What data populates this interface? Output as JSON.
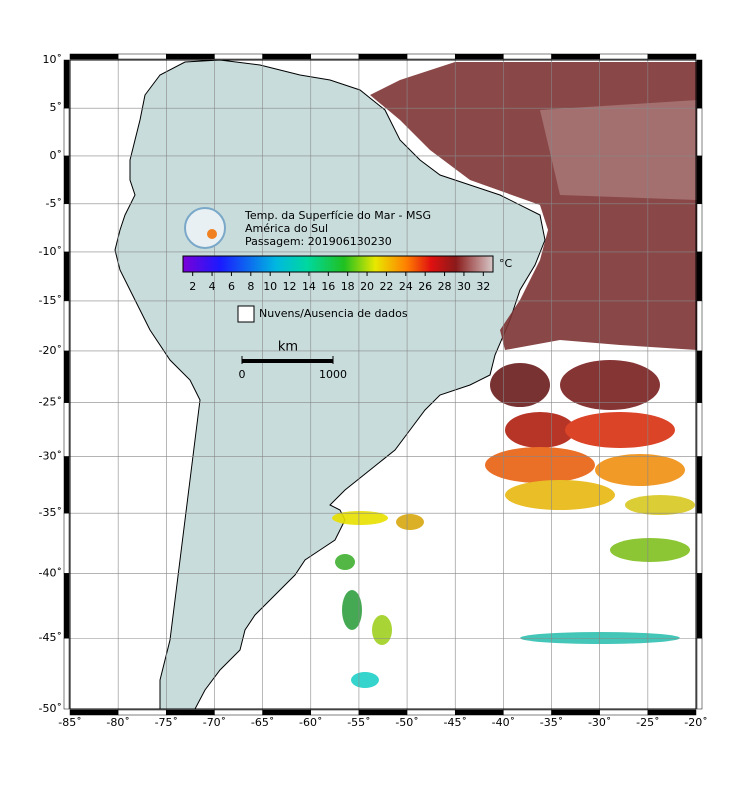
{
  "map": {
    "title_lines": [
      "Temp. da Superfície do Mar - MSG",
      "América do Sul",
      "Passagem: 201906130230"
    ],
    "xlim": [
      -85,
      -20
    ],
    "ylim": [
      -50,
      10
    ],
    "xticks": [
      {
        "value": -85,
        "label": "-85˚"
      },
      {
        "value": -80,
        "label": "-80˚"
      },
      {
        "value": -75,
        "label": "-75˚"
      },
      {
        "value": -70,
        "label": "-70˚"
      },
      {
        "value": -65,
        "label": "-65˚"
      },
      {
        "value": -60,
        "label": "-60˚"
      },
      {
        "value": -55,
        "label": "-55˚"
      },
      {
        "value": -50,
        "label": "-50˚"
      },
      {
        "value": -45,
        "label": "-45˚"
      },
      {
        "value": -40,
        "label": "-40˚"
      },
      {
        "value": -35,
        "label": "-35˚"
      },
      {
        "value": -30,
        "label": "-30˚"
      },
      {
        "value": -25,
        "label": "-25˚"
      },
      {
        "value": -20,
        "label": "-20˚"
      }
    ],
    "yticks": [
      {
        "value": 10,
        "label": "10˚"
      },
      {
        "value": 5,
        "label": "5˚"
      },
      {
        "value": 0,
        "label": "0˚"
      },
      {
        "value": -5,
        "label": "-5˚"
      },
      {
        "value": -10,
        "label": "-10˚"
      },
      {
        "value": -15,
        "label": "-15˚"
      },
      {
        "value": -20,
        "label": "-20˚"
      },
      {
        "value": -25,
        "label": "-25˚"
      },
      {
        "value": -30,
        "label": "-30˚"
      },
      {
        "value": -35,
        "label": "-35˚"
      },
      {
        "value": -40,
        "label": "-40˚"
      },
      {
        "value": -45,
        "label": "-45˚"
      },
      {
        "value": -50,
        "label": "-50˚"
      }
    ],
    "colorbar": {
      "unit": "°C",
      "lim": [
        1,
        33
      ],
      "ticks": [
        2,
        4,
        6,
        8,
        10,
        12,
        14,
        16,
        18,
        20,
        22,
        24,
        26,
        28,
        30,
        32
      ]
    },
    "legend": "Nuvens/Ausencia de dados",
    "scale_bar": {
      "unit": "km",
      "ticks": [
        0,
        1000
      ]
    }
  }
}
